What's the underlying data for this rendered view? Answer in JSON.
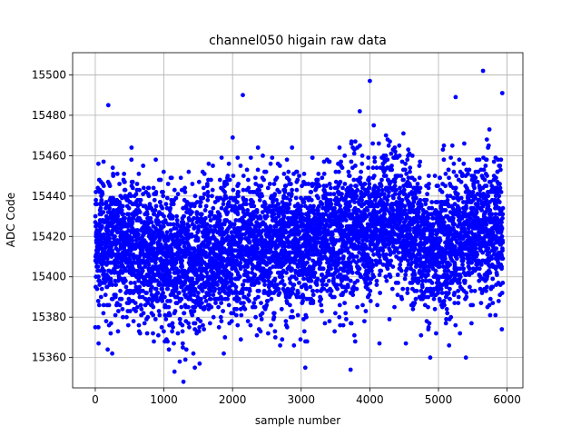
{
  "chart_data": {
    "type": "scatter",
    "title": "channel050 higain raw data",
    "xlabel": "sample number",
    "ylabel": "ADC Code",
    "xlim": [
      -330,
      6230
    ],
    "ylim": [
      15345,
      15511
    ],
    "x_ticks": [
      0,
      1000,
      2000,
      3000,
      4000,
      5000,
      6000
    ],
    "y_ticks": [
      15360,
      15380,
      15400,
      15420,
      15440,
      15460,
      15480,
      15500
    ],
    "grid": true,
    "legend": "none",
    "marker_color": "#0000ff",
    "n_samples": 5940,
    "level_profile": [
      {
        "x": 0,
        "y": 15416
      },
      {
        "x": 500,
        "y": 15415
      },
      {
        "x": 1000,
        "y": 15410
      },
      {
        "x": 1300,
        "y": 15406
      },
      {
        "x": 1600,
        "y": 15410
      },
      {
        "x": 2000,
        "y": 15415
      },
      {
        "x": 2500,
        "y": 15418
      },
      {
        "x": 3000,
        "y": 15416
      },
      {
        "x": 3500,
        "y": 15419
      },
      {
        "x": 4000,
        "y": 15423
      },
      {
        "x": 4300,
        "y": 15430
      },
      {
        "x": 4600,
        "y": 15422
      },
      {
        "x": 4900,
        "y": 15412
      },
      {
        "x": 5300,
        "y": 15420
      },
      {
        "x": 5600,
        "y": 15424
      },
      {
        "x": 5940,
        "y": 15425
      }
    ],
    "noise_sigma": 17,
    "outliers": [
      {
        "x": 190,
        "y": 15485
      },
      {
        "x": 180,
        "y": 15364
      },
      {
        "x": 1230,
        "y": 15358
      },
      {
        "x": 1450,
        "y": 15355
      },
      {
        "x": 2150,
        "y": 15490
      },
      {
        "x": 3060,
        "y": 15355
      },
      {
        "x": 3720,
        "y": 15354
      },
      {
        "x": 4000,
        "y": 15497
      },
      {
        "x": 4140,
        "y": 15367
      },
      {
        "x": 4880,
        "y": 15360
      },
      {
        "x": 5250,
        "y": 15489
      },
      {
        "x": 5400,
        "y": 15360
      },
      {
        "x": 5650,
        "y": 15502
      },
      {
        "x": 5930,
        "y": 15491
      }
    ]
  }
}
